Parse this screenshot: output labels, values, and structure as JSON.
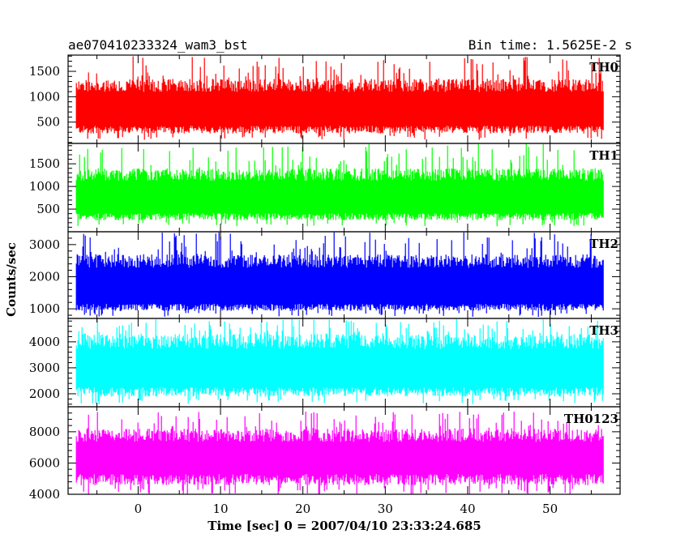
{
  "chart_data": {
    "type": "line",
    "title": "ae070410233324_wam3_bst",
    "subtitle": "Bin time: 1.5625E-2 s",
    "xlabel": "Time [sec] 0 = 2007/04/10 23:33:24.685",
    "ylabel": "Counts/sec",
    "xlim": [
      -8.5,
      58.5
    ],
    "x_data_range": [
      -7.5,
      56.5
    ],
    "bin_time": 0.015625,
    "x_ticks": [
      0,
      10,
      20,
      30,
      40,
      50
    ],
    "x_tick_labels": [
      "0",
      "10",
      "20",
      "30",
      "40",
      "50"
    ],
    "grid": false,
    "panels": [
      {
        "name": "TH0",
        "color": "#ff0000",
        "ylim": [
          80,
          1820
        ],
        "y_ticks": [
          500,
          1000,
          1500
        ],
        "y_tick_labels": [
          "500",
          "1000",
          "1500"
        ],
        "typical_range": [
          320,
          1350
        ],
        "peak_range": [
          150,
          1800
        ]
      },
      {
        "name": "TH1",
        "color": "#00ff00",
        "ylim": [
          0,
          1950
        ],
        "y_ticks": [
          500,
          1000,
          1500
        ],
        "y_tick_labels": [
          "500",
          "1000",
          "1500"
        ],
        "typical_range": [
          300,
          1400
        ],
        "peak_range": [
          120,
          1950
        ]
      },
      {
        "name": "TH2",
        "color": "#0000ff",
        "ylim": [
          700,
          3400
        ],
        "y_ticks": [
          1000,
          2000,
          3000
        ],
        "y_tick_labels": [
          "1000",
          "2000",
          "3000"
        ],
        "typical_range": [
          1000,
          2700
        ],
        "peak_range": [
          750,
          3400
        ]
      },
      {
        "name": "TH3",
        "color": "#00ffff",
        "ylim": [
          1500,
          4900
        ],
        "y_ticks": [
          2000,
          3000,
          4000
        ],
        "y_tick_labels": [
          "2000",
          "3000",
          "4000"
        ],
        "typical_range": [
          2000,
          4300
        ],
        "peak_range": [
          1600,
          4900
        ]
      },
      {
        "name": "TH0123",
        "color": "#ff00ff",
        "ylim": [
          4000,
          9600
        ],
        "y_ticks": [
          4000,
          6000,
          8000
        ],
        "y_tick_labels": [
          "4000",
          "6000",
          "8000"
        ],
        "typical_range": [
          4800,
          8200
        ],
        "peak_range": [
          4000,
          9300
        ]
      }
    ]
  }
}
